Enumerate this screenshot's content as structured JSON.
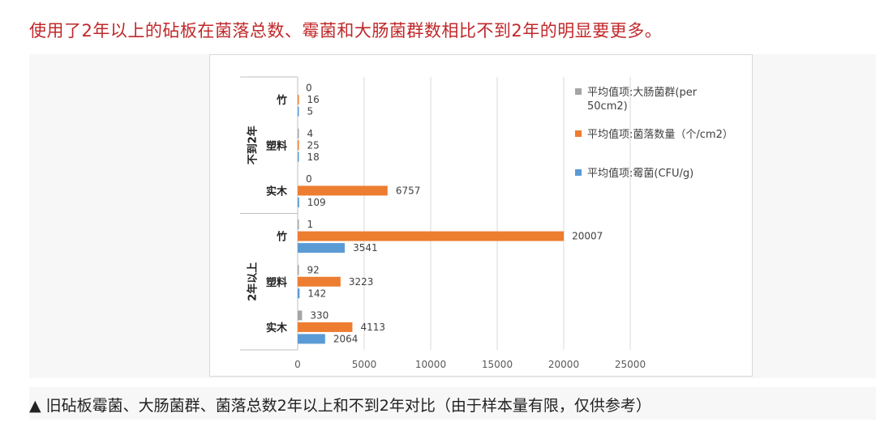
{
  "headline": "使用了2年以上的砧板在菌落总数、霉菌和大肠菌群数相比不到2年的明显要更多。",
  "caption": "▲ 旧砧板霉菌、大肠菌群、菌落总数2年以上和不到2年对比（由于样本量有限，仅供参考）",
  "chart_data": {
    "type": "bar",
    "orientation": "horizontal",
    "xlim": [
      0,
      25000
    ],
    "xticks": [
      0,
      5000,
      10000,
      15000,
      20000,
      25000
    ],
    "grid": true,
    "legend_position": "right",
    "groups": [
      {
        "name": "不到2年",
        "categories": [
          "竹",
          "塑料",
          "实木"
        ]
      },
      {
        "name": "2年以上",
        "categories": [
          "竹",
          "塑料",
          "实木"
        ]
      }
    ],
    "series": [
      {
        "name": "平均值项:大肠菌群(per 50cm2)",
        "legend_lines": [
          "平均值项:大肠菌群(per",
          "50cm2)"
        ],
        "color": "#a5a5a5",
        "values": [
          0,
          4,
          0,
          1,
          92,
          330
        ]
      },
      {
        "name": "平均值项:菌落数量（个/cm2）",
        "legend_lines": [
          "平均值项:菌落数量（个/cm2）"
        ],
        "color": "#ed7d31",
        "values": [
          16,
          25,
          6757,
          20007,
          3223,
          4113
        ]
      },
      {
        "name": "平均值项:霉菌(CFU/g)",
        "legend_lines": [
          "平均值项:霉菌(CFU/g)"
        ],
        "color": "#5b9bd5",
        "values": [
          5,
          18,
          109,
          3541,
          142,
          2064
        ]
      }
    ]
  }
}
